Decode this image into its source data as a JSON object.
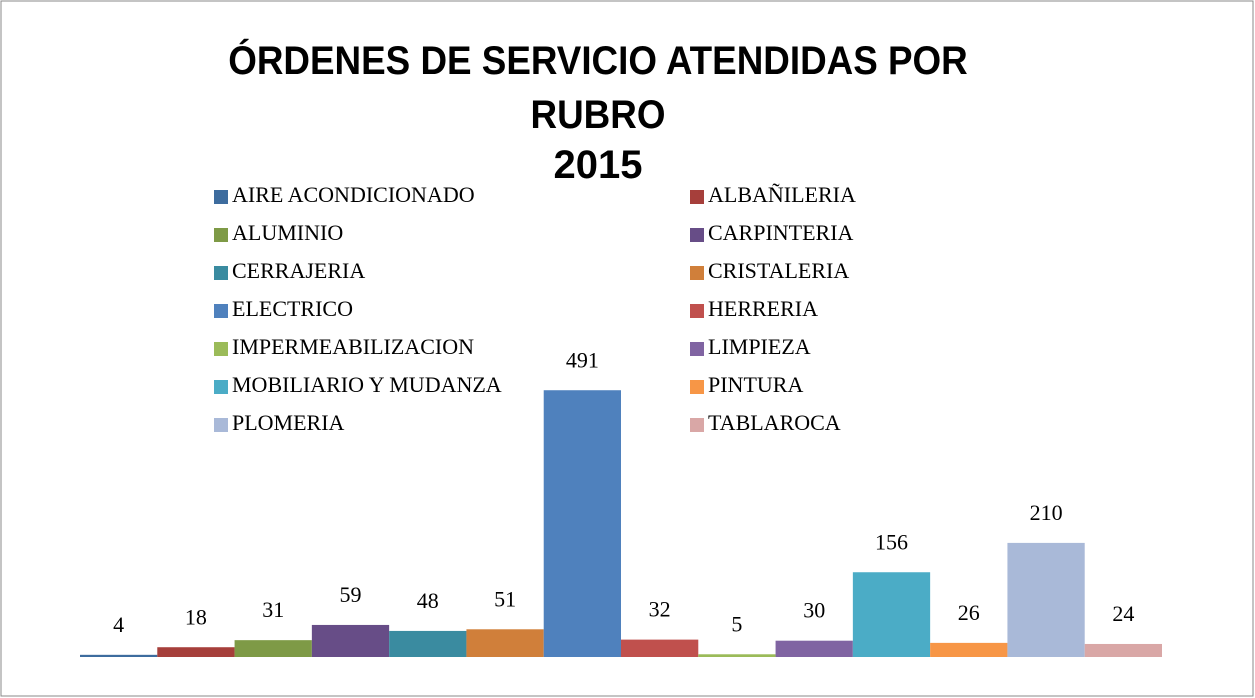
{
  "chart_data": {
    "type": "bar",
    "title": "ÓRDENES DE SERVICIO ATENDIDAS POR RUBRO",
    "subtitle": "2015",
    "ylim": [
      0,
      600
    ],
    "series": [
      {
        "name": "AIRE ACONDICIONADO",
        "color": "#3d6c9e",
        "values": [
          4
        ]
      },
      {
        "name": "ALBAÑILERIA",
        "color": "#a63f3b",
        "values": [
          18
        ]
      },
      {
        "name": "ALUMINIO",
        "color": "#7e9a46",
        "values": [
          31
        ]
      },
      {
        "name": "CARPINTERIA",
        "color": "#674d87",
        "values": [
          59
        ]
      },
      {
        "name": "CERRAJERIA",
        "color": "#3a8ba0",
        "values": [
          48
        ]
      },
      {
        "name": "CRISTALERIA",
        "color": "#d07f3a",
        "values": [
          51
        ]
      },
      {
        "name": "ELECTRICO",
        "color": "#4f81bd",
        "values": [
          491
        ]
      },
      {
        "name": "HERRERIA",
        "color": "#c0504d",
        "values": [
          32
        ]
      },
      {
        "name": "IMPERMEABILIZACION",
        "color": "#9bbb59",
        "values": [
          5
        ]
      },
      {
        "name": "LIMPIEZA",
        "color": "#8064a2",
        "values": [
          30
        ]
      },
      {
        "name": "MOBILIARIO Y MUDANZA",
        "color": "#4bacc6",
        "values": [
          156
        ]
      },
      {
        "name": "PINTURA",
        "color": "#f79646",
        "values": [
          26
        ]
      },
      {
        "name": "PLOMERIA",
        "color": "#a9b9d8",
        "values": [
          210
        ]
      },
      {
        "name": "TABLAROCA",
        "color": "#d9a7a6",
        "values": [
          24
        ]
      }
    ]
  }
}
